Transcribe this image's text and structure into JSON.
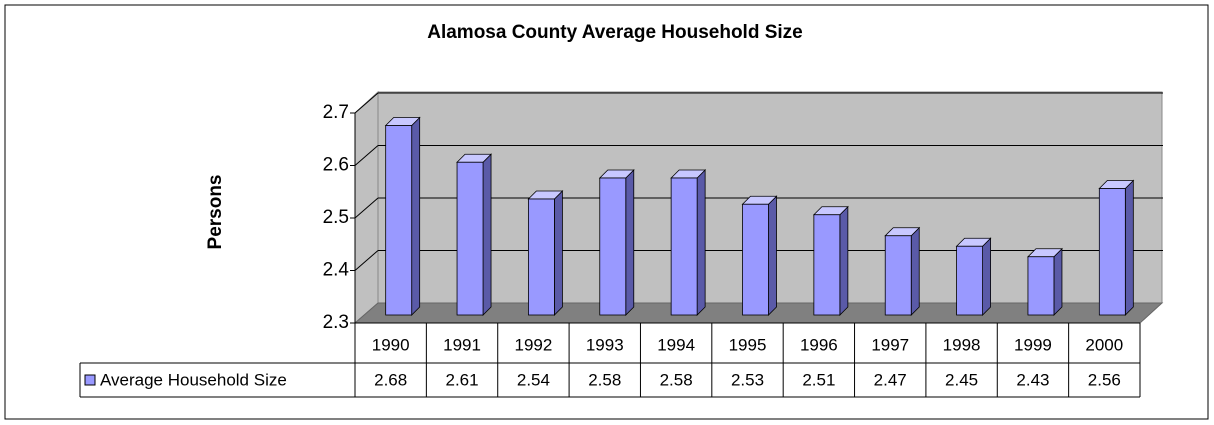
{
  "chart_data": {
    "type": "bar",
    "title": "Alamosa County Average Household Size",
    "y_label": "Persons",
    "categories": [
      "1990",
      "1991",
      "1992",
      "1993",
      "1994",
      "1995",
      "1996",
      "1997",
      "1998",
      "1999",
      "2000"
    ],
    "series": [
      {
        "name": "Average Household Size",
        "color": "#9999ff",
        "values": [
          2.68,
          2.61,
          2.54,
          2.58,
          2.58,
          2.53,
          2.51,
          2.47,
          2.45,
          2.43,
          2.56
        ]
      }
    ],
    "ylim": [
      2.3,
      2.7
    ],
    "yticks": [
      2.3,
      2.4,
      2.5,
      2.6,
      2.7
    ],
    "grid": true
  }
}
